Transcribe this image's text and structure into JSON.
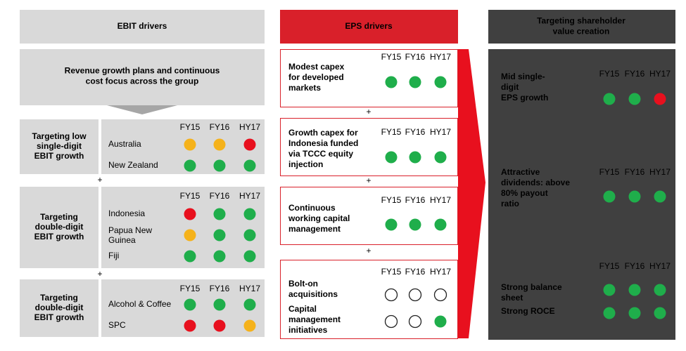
{
  "ebit": {
    "title": "EBIT drivers",
    "summary": [
      "Revenue growth plans and continuous",
      "cost focus across the group"
    ],
    "separators": [
      "+",
      "+"
    ],
    "groups": [
      {
        "label": [
          "Targeting low",
          "single-digit",
          "EBIT growth"
        ],
        "headers": [
          "FY15",
          "FY16",
          "HY17"
        ],
        "rows": [
          {
            "label": [
              "Australia"
            ],
            "status": [
              "amber",
              "amber",
              "red"
            ]
          },
          {
            "label": [
              "New Zealand"
            ],
            "status": [
              "green",
              "green",
              "green"
            ]
          }
        ]
      },
      {
        "label": [
          "Targeting",
          "double-digit",
          "EBIT growth"
        ],
        "headers": [
          "FY15",
          "FY16",
          "HY17"
        ],
        "rows": [
          {
            "label": [
              "Indonesia"
            ],
            "status": [
              "red",
              "green",
              "green"
            ]
          },
          {
            "label": [
              "Papua New",
              "Guinea"
            ],
            "status": [
              "amber",
              "green",
              "green"
            ]
          },
          {
            "label": [
              "Fiji"
            ],
            "status": [
              "green",
              "green",
              "green"
            ]
          }
        ]
      },
      {
        "label": [
          "Targeting",
          "double-digit",
          "EBIT growth"
        ],
        "headers": [
          "FY15",
          "FY16",
          "HY17"
        ],
        "rows": [
          {
            "label": [
              "Alcohol & Coffee"
            ],
            "status": [
              "green",
              "green",
              "green"
            ]
          },
          {
            "label": [
              "SPC"
            ],
            "status": [
              "red",
              "red",
              "amber"
            ]
          }
        ]
      }
    ]
  },
  "eps": {
    "title": "EPS drivers",
    "separators": [
      "+",
      "+",
      "+"
    ],
    "boxes": [
      {
        "headers": [
          "FY15",
          "FY16",
          "HY17"
        ],
        "rows": [
          {
            "label": [
              "Modest capex",
              "for developed",
              "markets"
            ],
            "status": [
              "green",
              "green",
              "green"
            ]
          }
        ]
      },
      {
        "headers": [
          "FY15",
          "FY16",
          "HY17"
        ],
        "rows": [
          {
            "label": [
              "Growth capex for",
              "Indonesia funded",
              "via TCCC equity",
              "injection"
            ],
            "status": [
              "green",
              "green",
              "green"
            ]
          }
        ]
      },
      {
        "headers": [
          "FY15",
          "FY16",
          "HY17"
        ],
        "rows": [
          {
            "label": [
              "Continuous",
              "working capital",
              "management"
            ],
            "status": [
              "green",
              "green",
              "green"
            ]
          }
        ]
      },
      {
        "headers": [
          "FY15",
          "FY16",
          "HY17"
        ],
        "rows": [
          {
            "label": [
              "Bolt-on",
              "acquisitions"
            ],
            "status": [
              "empty",
              "empty",
              "empty"
            ]
          },
          {
            "label": [
              "Capital",
              "management",
              "initiatives"
            ],
            "status": [
              "empty",
              "empty",
              "green"
            ]
          }
        ]
      }
    ]
  },
  "shareholder": {
    "title": [
      "Targeting shareholder",
      "value creation"
    ],
    "blocks": [
      {
        "headers": [
          "FY15",
          "FY16",
          "HY17"
        ],
        "rows": [
          {
            "label": [
              "Mid single-",
              "digit",
              "EPS growth"
            ],
            "status": [
              "green",
              "green",
              "red"
            ]
          }
        ]
      },
      {
        "headers": [
          "FY15",
          "FY16",
          "HY17"
        ],
        "rows": [
          {
            "label": [
              "Attractive",
              "dividends: above",
              "80% payout",
              "ratio"
            ],
            "status": [
              "green",
              "green",
              "green"
            ]
          }
        ]
      },
      {
        "headers": [
          "FY15",
          "FY16",
          "HY17"
        ],
        "rows": [
          {
            "label": [
              "Strong balance",
              "sheet"
            ],
            "status": [
              "green",
              "green",
              "green"
            ]
          },
          {
            "label": [
              "Strong ROCE"
            ],
            "status": [
              "green",
              "green",
              "green"
            ]
          }
        ]
      }
    ]
  }
}
